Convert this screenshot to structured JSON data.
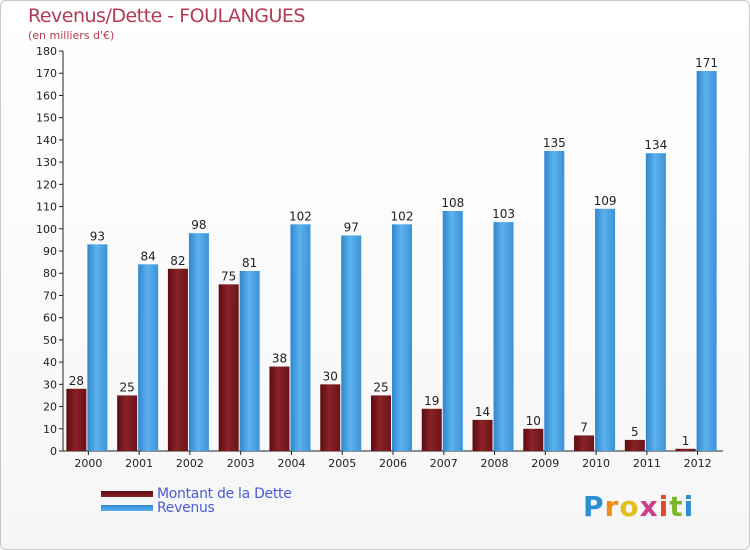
{
  "chart_data": {
    "type": "bar",
    "title": "Revenus/Dette - FOULANGUES",
    "subtitle": "(en milliers d'€)",
    "categories": [
      "2000",
      "2001",
      "2002",
      "2003",
      "2004",
      "2005",
      "2006",
      "2007",
      "2008",
      "2009",
      "2010",
      "2011",
      "2012"
    ],
    "series": [
      {
        "name": "Montant de la Dette",
        "values": [
          28,
          25,
          82,
          75,
          38,
          30,
          25,
          19,
          14,
          10,
          7,
          5,
          1
        ]
      },
      {
        "name": "Revenus",
        "values": [
          93,
          84,
          98,
          81,
          102,
          97,
          102,
          108,
          103,
          135,
          109,
          134,
          171
        ]
      }
    ],
    "ylim": [
      0,
      180
    ],
    "ytick_step": 10,
    "grid": false,
    "legend_position": "bottom-left",
    "data_labels": true
  },
  "colors": {
    "debt": "#7a1a1c",
    "revenue": "#4ea6e6",
    "title": "#b33a57",
    "legend_text": "#4a5cd6"
  },
  "logo": {
    "text": "Proxiti"
  }
}
